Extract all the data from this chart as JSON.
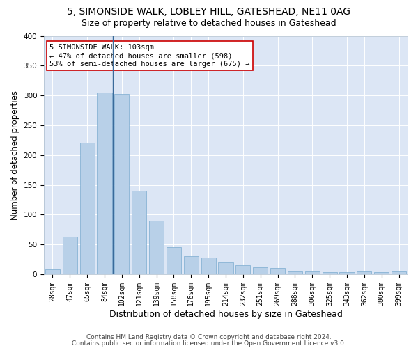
{
  "title1": "5, SIMONSIDE WALK, LOBLEY HILL, GATESHEAD, NE11 0AG",
  "title2": "Size of property relative to detached houses in Gateshead",
  "xlabel": "Distribution of detached houses by size in Gateshead",
  "ylabel": "Number of detached properties",
  "bar_color": "#b8d0e8",
  "bar_edge_color": "#7aabcf",
  "bg_color": "#dce6f5",
  "grid_color": "#ffffff",
  "categories": [
    "28sqm",
    "47sqm",
    "65sqm",
    "84sqm",
    "102sqm",
    "121sqm",
    "139sqm",
    "158sqm",
    "176sqm",
    "195sqm",
    "214sqm",
    "232sqm",
    "251sqm",
    "269sqm",
    "288sqm",
    "306sqm",
    "325sqm",
    "343sqm",
    "362sqm",
    "380sqm",
    "399sqm"
  ],
  "values": [
    8,
    63,
    221,
    305,
    302,
    140,
    90,
    46,
    30,
    28,
    20,
    15,
    12,
    10,
    5,
    5,
    3,
    3,
    5,
    3,
    5
  ],
  "annotation_line1": "5 SIMONSIDE WALK: 103sqm",
  "annotation_line2": "← 47% of detached houses are smaller (598)",
  "annotation_line3": "53% of semi-detached houses are larger (675) →",
  "annotation_box_color": "#ffffff",
  "annotation_box_edge": "#cc0000",
  "marker_line_color": "#3a6a9a",
  "footer1": "Contains HM Land Registry data © Crown copyright and database right 2024.",
  "footer2": "Contains public sector information licensed under the Open Government Licence v3.0.",
  "ylim": [
    0,
    400
  ],
  "title1_fontsize": 10,
  "title2_fontsize": 9,
  "axis_label_fontsize": 8.5,
  "tick_fontsize": 7,
  "annot_fontsize": 7.5,
  "footer_fontsize": 6.5,
  "fig_bg": "#ffffff"
}
